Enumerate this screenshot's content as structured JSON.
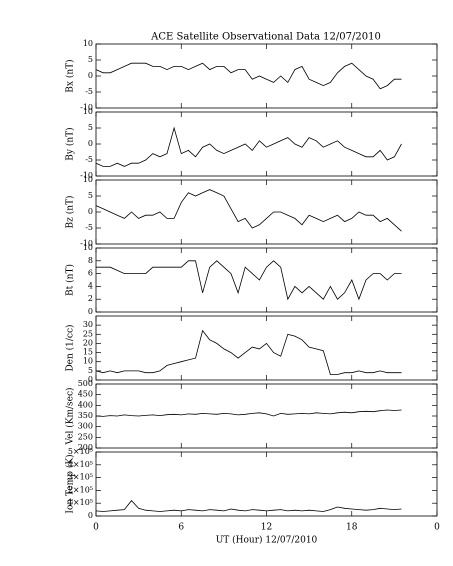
{
  "chart_data": [
    {
      "type": "line",
      "title": "ACE Satellite Observational Data   12/07/2010",
      "ylabel": "Bx (nT)",
      "ylim": [
        -10,
        10
      ],
      "yticks": [
        -10,
        -5,
        0,
        5,
        10
      ],
      "x": [
        0,
        0.5,
        1,
        1.5,
        2,
        2.5,
        3,
        3.5,
        4,
        4.5,
        5,
        5.5,
        6,
        6.5,
        7,
        7.5,
        8,
        8.5,
        9,
        9.5,
        10,
        10.5,
        11,
        11.5,
        12,
        12.5,
        13,
        13.5,
        14,
        14.5,
        15,
        15.5,
        16,
        16.5,
        17,
        17.5,
        18,
        18.5,
        19,
        19.5,
        20,
        20.5,
        21,
        21.5
      ],
      "series": [
        {
          "name": "Bx",
          "color": "#000000",
          "values": [
            2,
            1,
            1,
            2,
            3,
            4,
            4,
            4,
            3,
            3,
            2,
            3,
            3,
            2,
            3,
            4,
            2,
            3,
            3,
            1,
            2,
            2,
            -1,
            0,
            -1,
            -2,
            0,
            -2,
            2,
            3,
            -1,
            -2,
            -3,
            -2,
            1,
            3,
            4,
            2,
            0,
            -1,
            -4,
            -3,
            -1,
            -1
          ]
        }
      ]
    },
    {
      "type": "line",
      "ylabel": "By (nT)",
      "ylim": [
        -10,
        10
      ],
      "yticks": [
        -10,
        -5,
        0,
        5,
        10
      ],
      "x": [
        0,
        0.5,
        1,
        1.5,
        2,
        2.5,
        3,
        3.5,
        4,
        4.5,
        5,
        5.5,
        6,
        6.5,
        7,
        7.5,
        8,
        8.5,
        9,
        9.5,
        10,
        10.5,
        11,
        11.5,
        12,
        12.5,
        13,
        13.5,
        14,
        14.5,
        15,
        15.5,
        16,
        16.5,
        17,
        17.5,
        18,
        18.5,
        19,
        19.5,
        20,
        20.5,
        21,
        21.5
      ],
      "series": [
        {
          "name": "By",
          "color": "#000000",
          "values": [
            -6,
            -7,
            -7,
            -6,
            -7,
            -6,
            -6,
            -5,
            -3,
            -4,
            -3,
            5,
            -3,
            -2,
            -4,
            -1,
            0,
            -2,
            -3,
            -2,
            -1,
            0,
            -2,
            1,
            -1,
            0,
            1,
            2,
            0,
            -1,
            2,
            1,
            -1,
            0,
            1,
            -1,
            -2,
            -3,
            -4,
            -4,
            -2,
            -5,
            -4,
            0
          ]
        }
      ]
    },
    {
      "type": "line",
      "ylabel": "Bz (nT)",
      "ylim": [
        -10,
        10
      ],
      "yticks": [
        -10,
        -5,
        0,
        5,
        10
      ],
      "x": [
        0,
        0.5,
        1,
        1.5,
        2,
        2.5,
        3,
        3.5,
        4,
        4.5,
        5,
        5.5,
        6,
        6.5,
        7,
        7.5,
        8,
        8.5,
        9,
        9.5,
        10,
        10.5,
        11,
        11.5,
        12,
        12.5,
        13,
        13.5,
        14,
        14.5,
        15,
        15.5,
        16,
        16.5,
        17,
        17.5,
        18,
        18.5,
        19,
        19.5,
        20,
        20.5,
        21,
        21.5
      ],
      "series": [
        {
          "name": "Bz",
          "color": "#000000",
          "values": [
            2,
            1,
            0,
            -1,
            -2,
            0,
            -2,
            -1,
            -1,
            0,
            -2,
            -2,
            3,
            6,
            5,
            6,
            7,
            6,
            5,
            1,
            -3,
            -2,
            -5,
            -4,
            -2,
            0,
            0,
            -1,
            -2,
            -4,
            -1,
            -2,
            -3,
            -2,
            -1,
            -3,
            -2,
            0,
            -1,
            -1,
            -3,
            -2,
            -4,
            -6
          ]
        }
      ]
    },
    {
      "type": "line",
      "ylabel": "Bt (nT)",
      "ylim": [
        0,
        10
      ],
      "yticks": [
        0,
        2,
        4,
        6,
        8,
        10
      ],
      "x": [
        0,
        0.5,
        1,
        1.5,
        2,
        2.5,
        3,
        3.5,
        4,
        4.5,
        5,
        5.5,
        6,
        6.5,
        7,
        7.5,
        8,
        8.5,
        9,
        9.5,
        10,
        10.5,
        11,
        11.5,
        12,
        12.5,
        13,
        13.5,
        14,
        14.5,
        15,
        15.5,
        16,
        16.5,
        17,
        17.5,
        18,
        18.5,
        19,
        19.5,
        20,
        20.5,
        21,
        21.5
      ],
      "series": [
        {
          "name": "Bt",
          "color": "#000000",
          "values": [
            7,
            7,
            7,
            6.5,
            6,
            6,
            6,
            6,
            7,
            7,
            7,
            7,
            7,
            8,
            8,
            3,
            7,
            8,
            7,
            6,
            3,
            7,
            6,
            5,
            7,
            8,
            7,
            2,
            4,
            3,
            4,
            3,
            2,
            4,
            2,
            3,
            5,
            2,
            5,
            6,
            6,
            5,
            6,
            6
          ]
        }
      ]
    },
    {
      "type": "line",
      "ylabel": "Den (1/cc)",
      "ylim": [
        0,
        35
      ],
      "yticks": [
        0,
        5,
        10,
        15,
        20,
        25,
        30
      ],
      "x": [
        0,
        0.5,
        1,
        1.5,
        2,
        2.5,
        3,
        3.5,
        4,
        4.5,
        5,
        5.5,
        6,
        6.5,
        7,
        7.5,
        8,
        8.5,
        9,
        9.5,
        10,
        10.5,
        11,
        11.5,
        12,
        12.5,
        13,
        13.5,
        14,
        14.5,
        15,
        15.5,
        16,
        16.5,
        17,
        17.5,
        18,
        18.5,
        19,
        19.5,
        20,
        20.5,
        21,
        21.5
      ],
      "series": [
        {
          "name": "Den",
          "color": "#000000",
          "values": [
            5,
            4,
            5,
            4,
            5,
            5,
            5,
            4,
            4,
            5,
            8,
            9,
            10,
            11,
            12,
            27,
            22,
            20,
            17,
            15,
            12,
            15,
            18,
            17,
            20,
            15,
            13,
            25,
            24,
            22,
            18,
            17,
            16,
            3,
            3,
            4,
            4,
            5,
            4,
            4,
            5,
            4,
            4,
            4
          ]
        }
      ]
    },
    {
      "type": "line",
      "ylabel": "Vel (Km/sec)",
      "ylim": [
        200,
        500
      ],
      "yticks": [
        200,
        250,
        300,
        350,
        400,
        450,
        500
      ],
      "x": [
        0,
        0.5,
        1,
        1.5,
        2,
        2.5,
        3,
        3.5,
        4,
        4.5,
        5,
        5.5,
        6,
        6.5,
        7,
        7.5,
        8,
        8.5,
        9,
        9.5,
        10,
        10.5,
        11,
        11.5,
        12,
        12.5,
        13,
        13.5,
        14,
        14.5,
        15,
        15.5,
        16,
        16.5,
        17,
        17.5,
        18,
        18.5,
        19,
        19.5,
        20,
        20.5,
        21,
        21.5
      ],
      "series": [
        {
          "name": "Vel",
          "color": "#000000",
          "values": [
            350,
            348,
            352,
            350,
            355,
            352,
            350,
            353,
            355,
            352,
            356,
            358,
            355,
            360,
            358,
            362,
            360,
            358,
            362,
            360,
            355,
            358,
            362,
            365,
            360,
            350,
            362,
            358,
            360,
            362,
            360,
            365,
            362,
            360,
            365,
            368,
            365,
            370,
            372,
            370,
            375,
            378,
            376,
            378
          ]
        }
      ]
    },
    {
      "type": "line",
      "ylabel": "Ion Temp (K)",
      "ylim": [
        0,
        500000
      ],
      "yticks": [
        0,
        {
          "value": 100000,
          "label": "1×10⁵"
        },
        {
          "value": 200000,
          "label": "2×10⁵"
        },
        {
          "value": 300000,
          "label": "3×10⁵"
        },
        {
          "value": 400000,
          "label": "4×10⁵"
        },
        {
          "value": 500000,
          "label": "5×10⁵"
        }
      ],
      "xlabel": "UT (Hour)  12/07/2010",
      "xlim": [
        0,
        24
      ],
      "xticks": [
        0,
        6,
        12,
        18,
        {
          "value": 24,
          "label": "0"
        }
      ],
      "x": [
        0,
        0.5,
        1,
        1.5,
        2,
        2.5,
        3,
        3.5,
        4,
        4.5,
        5,
        5.5,
        6,
        6.5,
        7,
        7.5,
        8,
        8.5,
        9,
        9.5,
        10,
        10.5,
        11,
        11.5,
        12,
        12.5,
        13,
        13.5,
        14,
        14.5,
        15,
        15.5,
        16,
        16.5,
        17,
        17.5,
        18,
        18.5,
        19,
        19.5,
        20,
        20.5,
        21,
        21.5
      ],
      "series": [
        {
          "name": "Ion Temp",
          "color": "#000000",
          "values": [
            40000,
            35000,
            40000,
            45000,
            50000,
            120000,
            60000,
            45000,
            40000,
            35000,
            40000,
            45000,
            40000,
            50000,
            45000,
            40000,
            50000,
            45000,
            40000,
            55000,
            45000,
            40000,
            50000,
            45000,
            40000,
            45000,
            50000,
            40000,
            45000,
            40000,
            45000,
            40000,
            35000,
            50000,
            70000,
            60000,
            55000,
            50000,
            45000,
            50000,
            60000,
            55000,
            50000,
            55000
          ]
        }
      ]
    }
  ]
}
